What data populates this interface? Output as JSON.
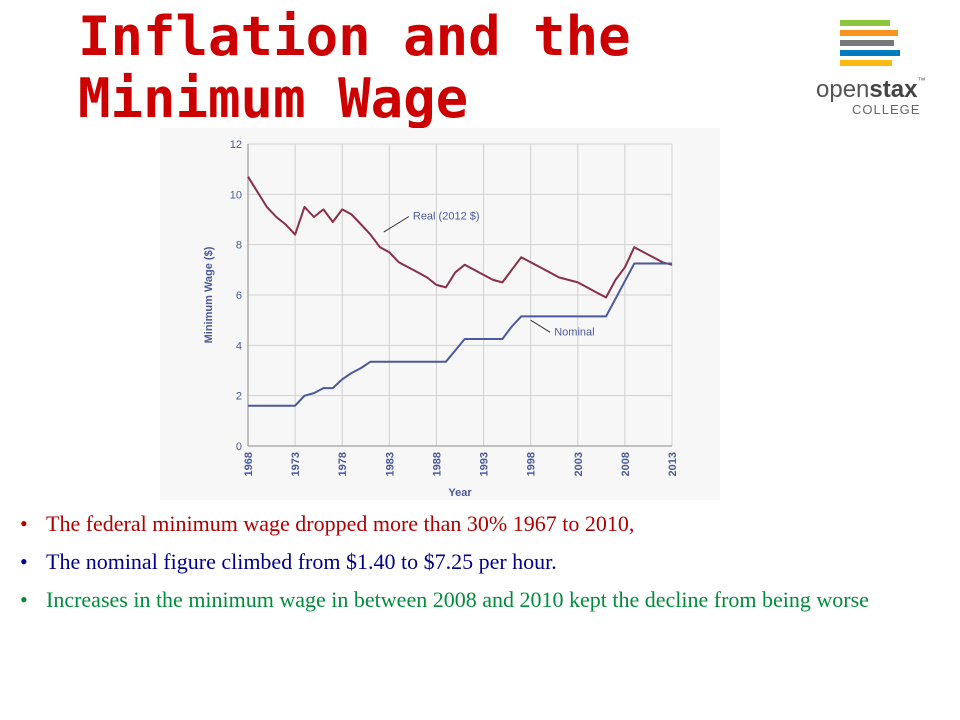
{
  "slide": {
    "title_line1": "Inflation and the",
    "title_line2": "Minimum Wage",
    "logo": {
      "brand_light": "open",
      "brand_bold": "stax",
      "tm": "™",
      "sub": "COLLEGE",
      "stripe_colors": [
        "#8cc63f",
        "#f7941d",
        "#77787b",
        "#0079c1",
        "#fdb913"
      ]
    },
    "bullets": [
      {
        "text": "The federal minimum wage dropped more than 30% 1967 to 2010,",
        "color": "#b00000",
        "trail": ","
      },
      {
        "text": "The nominal figure climbed from $1.40 to $7.25 per hour.",
        "color": "#00008b"
      },
      {
        "text": "Increases in the minimum wage in between 2008 and 2010 kept the decline from being worse",
        "color": "#008c3a"
      }
    ]
  },
  "chart_data": {
    "type": "line",
    "xlabel": "Year",
    "ylabel": "Minimum Wage ($)",
    "xlim": [
      1968,
      2013
    ],
    "ylim": [
      0,
      12
    ],
    "x_ticks": [
      "1968",
      "1973",
      "1978",
      "1983",
      "1988",
      "1993",
      "1998",
      "2003",
      "2008",
      "2013"
    ],
    "y_ticks": [
      "0",
      "2",
      "4",
      "6",
      "8",
      "10",
      "12"
    ],
    "grid": true,
    "series": [
      {
        "name": "Real (2012 $)",
        "color": "#8b2e4a",
        "points": [
          [
            1968,
            10.7
          ],
          [
            1969,
            10.1
          ],
          [
            1970,
            9.5
          ],
          [
            1971,
            9.1
          ],
          [
            1972,
            8.8
          ],
          [
            1973,
            8.4
          ],
          [
            1974,
            9.5
          ],
          [
            1975,
            9.1
          ],
          [
            1976,
            9.4
          ],
          [
            1977,
            8.9
          ],
          [
            1978,
            9.4
          ],
          [
            1979,
            9.2
          ],
          [
            1980,
            8.8
          ],
          [
            1981,
            8.4
          ],
          [
            1982,
            7.9
          ],
          [
            1983,
            7.7
          ],
          [
            1984,
            7.3
          ],
          [
            1985,
            7.1
          ],
          [
            1986,
            6.9
          ],
          [
            1987,
            6.7
          ],
          [
            1988,
            6.4
          ],
          [
            1989,
            6.3
          ],
          [
            1990,
            6.9
          ],
          [
            1991,
            7.2
          ],
          [
            1992,
            7.0
          ],
          [
            1993,
            6.8
          ],
          [
            1994,
            6.6
          ],
          [
            1995,
            6.5
          ],
          [
            1996,
            7.0
          ],
          [
            1997,
            7.5
          ],
          [
            1998,
            7.3
          ],
          [
            1999,
            7.1
          ],
          [
            2000,
            6.9
          ],
          [
            2001,
            6.7
          ],
          [
            2002,
            6.6
          ],
          [
            2003,
            6.5
          ],
          [
            2004,
            6.3
          ],
          [
            2005,
            6.1
          ],
          [
            2006,
            5.9
          ],
          [
            2007,
            6.6
          ],
          [
            2008,
            7.1
          ],
          [
            2009,
            7.9
          ],
          [
            2010,
            7.7
          ],
          [
            2011,
            7.5
          ],
          [
            2012,
            7.3
          ],
          [
            2013,
            7.2
          ]
        ]
      },
      {
        "name": "Nominal",
        "color": "#4a5a9c",
        "points": [
          [
            1968,
            1.6
          ],
          [
            1970,
            1.6
          ],
          [
            1972,
            1.6
          ],
          [
            1973,
            1.6
          ],
          [
            1974,
            2.0
          ],
          [
            1975,
            2.1
          ],
          [
            1976,
            2.3
          ],
          [
            1977,
            2.3
          ],
          [
            1978,
            2.65
          ],
          [
            1979,
            2.9
          ],
          [
            1980,
            3.1
          ],
          [
            1981,
            3.35
          ],
          [
            1983,
            3.35
          ],
          [
            1985,
            3.35
          ],
          [
            1988,
            3.35
          ],
          [
            1989,
            3.35
          ],
          [
            1990,
            3.8
          ],
          [
            1991,
            4.25
          ],
          [
            1992,
            4.25
          ],
          [
            1995,
            4.25
          ],
          [
            1996,
            4.75
          ],
          [
            1997,
            5.15
          ],
          [
            1998,
            5.15
          ],
          [
            2001,
            5.15
          ],
          [
            2004,
            5.15
          ],
          [
            2006,
            5.15
          ],
          [
            2007,
            5.85
          ],
          [
            2008,
            6.55
          ],
          [
            2009,
            7.25
          ],
          [
            2013,
            7.25
          ]
        ]
      }
    ],
    "annotations": [
      {
        "text": "Real (2012 $)",
        "x": 1985.5,
        "y": 9.0,
        "target": [
          1982.4,
          8.5
        ]
      },
      {
        "text": "Nominal",
        "x": 2000.5,
        "y": 4.4,
        "target": [
          1998.0,
          5.0
        ]
      }
    ]
  }
}
